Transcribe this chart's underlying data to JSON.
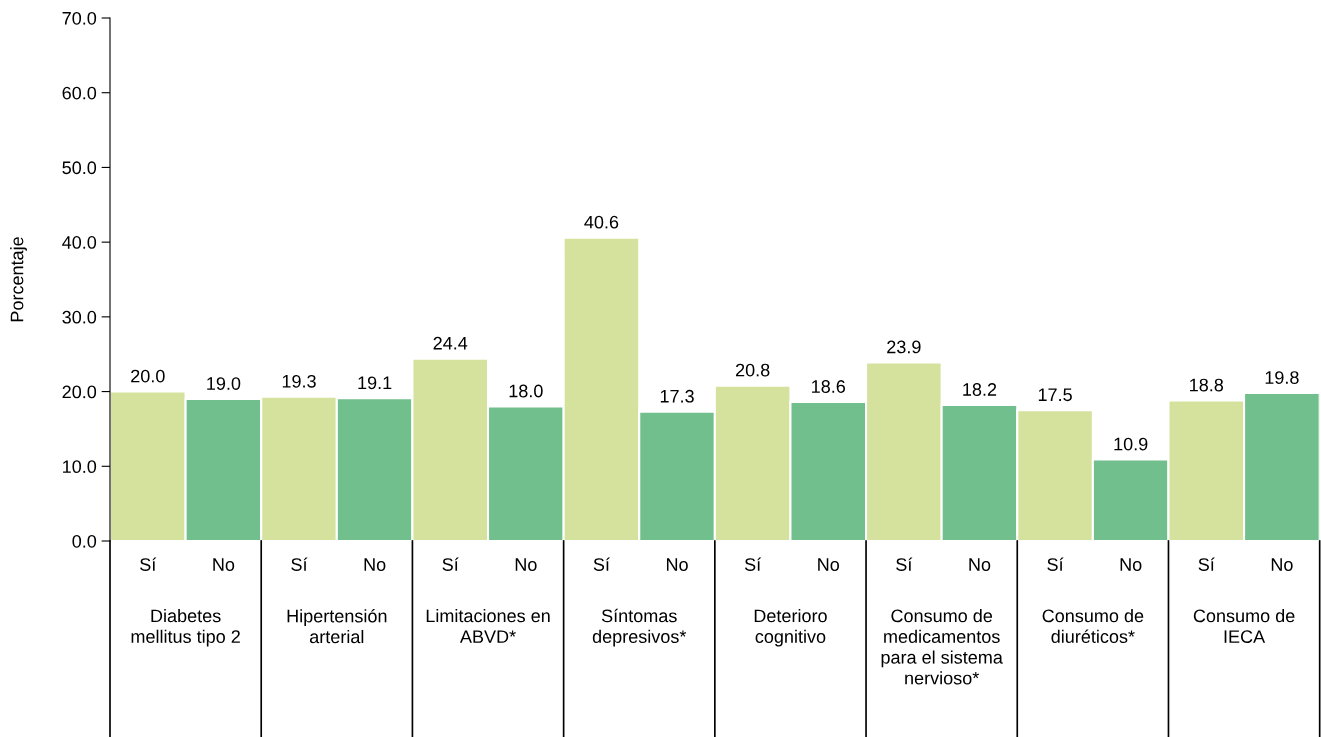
{
  "chart_data": {
    "type": "bar",
    "ylabel": "Porcentaje",
    "categories": [
      "Sí",
      "No",
      "Sí",
      "No",
      "Sí",
      "No",
      "Sí",
      "No",
      "Sí",
      "No",
      "Sí",
      "No",
      "Sí",
      "No",
      "Sí",
      "No"
    ],
    "values": [
      20.0,
      19.0,
      19.3,
      19.1,
      24.4,
      18.0,
      40.6,
      17.3,
      20.8,
      18.6,
      23.9,
      18.2,
      17.5,
      10.9,
      18.8,
      19.8
    ],
    "value_labels": [
      "20.0",
      "19.0",
      "19.3",
      "19.1",
      "24.4",
      "18.0",
      "40.6",
      "17.3",
      "20.8",
      "18.6",
      "23.9",
      "18.2",
      "17.5",
      "10.9",
      "18.8",
      "19.8"
    ],
    "colors": [
      "#d4e29e",
      "#71bf8c",
      "#d4e29e",
      "#71bf8c",
      "#d4e29e",
      "#71bf8c",
      "#d4e29e",
      "#71bf8c",
      "#d4e29e",
      "#71bf8c",
      "#d4e29e",
      "#71bf8c",
      "#d4e29e",
      "#71bf8c",
      "#d4e29e",
      "#71bf8c"
    ],
    "ylim": [
      0,
      70
    ],
    "yticks": [
      {
        "value": 0,
        "label": "0.0"
      },
      {
        "value": 10,
        "label": "10.0"
      },
      {
        "value": 20,
        "label": "20.0"
      },
      {
        "value": 30,
        "label": "30.0"
      },
      {
        "value": 40,
        "label": "40.0"
      },
      {
        "value": 50,
        "label": "50.0"
      },
      {
        "value": 60,
        "label": "60.0"
      },
      {
        "value": 70,
        "label": "70.0"
      }
    ],
    "annotations": [
      "Diabetes\nmellitus tipo 2",
      "Hipertensión\narterial",
      "Limitaciones en\nABVD*",
      "Síntomas\ndepresivos*",
      "Deterioro\ncognitivo",
      "Consumo de\nmedicamentos\npara el sistema\nnervioso*",
      "Consumo de\ndiuréticos*",
      "Consumo de\nIECA"
    ],
    "grid": false,
    "legend": false
  }
}
